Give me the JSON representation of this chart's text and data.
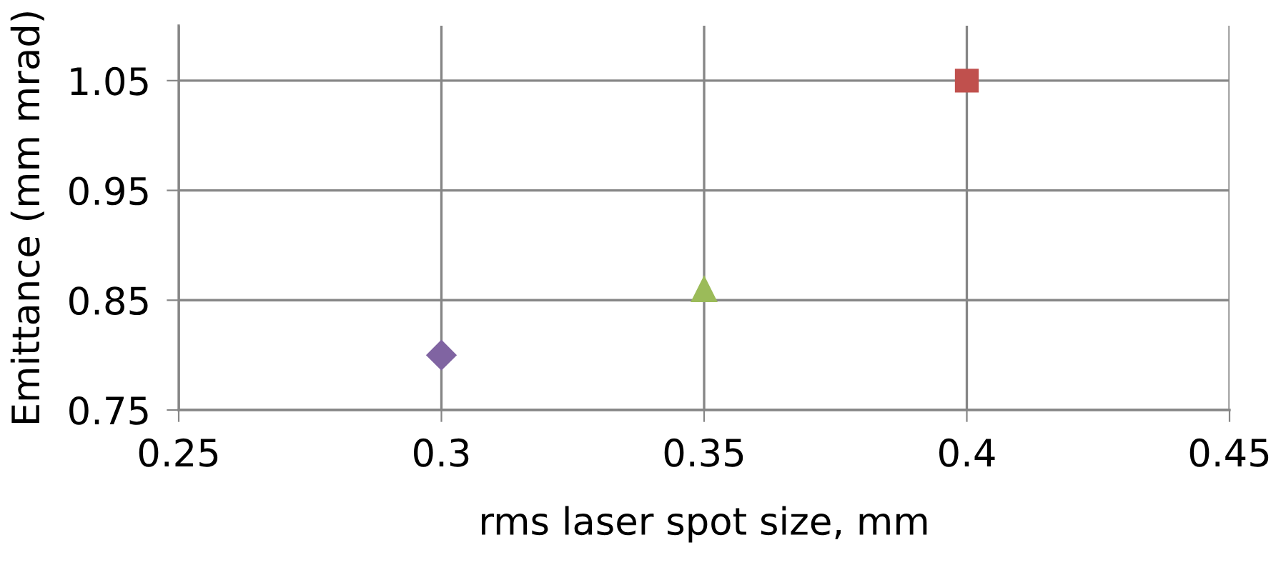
{
  "chart_data": {
    "type": "scatter",
    "xlabel": "rms laser spot size, mm",
    "ylabel": "Emittance (mm mrad)",
    "xlim": [
      0.25,
      0.45
    ],
    "xticks": [
      0.25,
      0.3,
      0.35,
      0.4,
      0.45
    ],
    "ylim": [
      0.75,
      1.1
    ],
    "yticks": [
      0.75,
      0.85,
      0.95,
      1.05
    ],
    "grid": true,
    "series": [
      {
        "color": "#c0504d",
        "marker": "square",
        "x": [
          0.4
        ],
        "values": [
          1.05
        ]
      },
      {
        "color": "#9bbb59",
        "marker": "triangle",
        "x": [
          0.35
        ],
        "values": [
          0.86
        ]
      },
      {
        "color": "#8064a2",
        "marker": "diamond",
        "x": [
          0.3
        ],
        "values": [
          0.8
        ]
      }
    ]
  }
}
